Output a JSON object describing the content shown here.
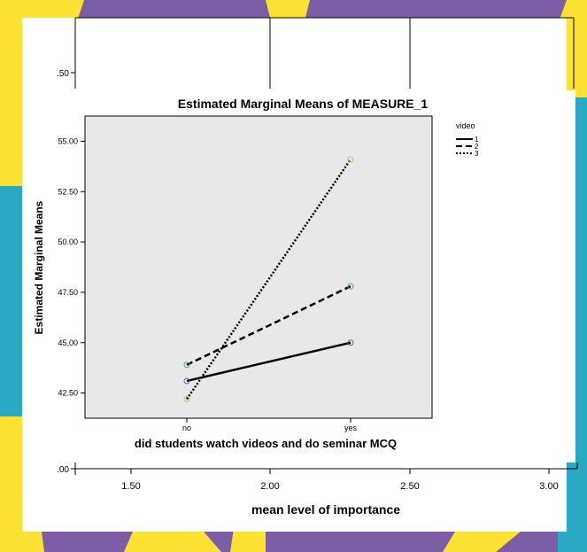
{
  "colors": {
    "purple": "#7b5ea6",
    "teal": "#2aa9c4",
    "yellow": "#fde233",
    "panel": "#e8e8e8"
  },
  "background_chart": {
    "y_tick_top": ".50",
    "y_tick_bottom": ".00",
    "x_ticks": [
      "1.50",
      "2.00",
      "2.50",
      "3.00"
    ],
    "xlabel": "mean level of importance"
  },
  "chart_data": {
    "type": "line",
    "title": "Estimated Marginal Means of MEASURE_1",
    "xlabel": "did students watch videos and do seminar MCQ",
    "ylabel": "Estimated Marginal Means",
    "categories": [
      "no",
      "yes"
    ],
    "yticks": [
      "42.50",
      "45.00",
      "47.50",
      "50.00",
      "52.50",
      "55.00"
    ],
    "ylim": [
      41.25,
      56.25
    ],
    "legend_title": "video",
    "legend_position": "right",
    "grid": false,
    "series": [
      {
        "name": "1",
        "values": [
          43.1,
          45.0
        ],
        "dash": "solid",
        "marker_color": "#5566aa"
      },
      {
        "name": "2",
        "values": [
          43.9,
          47.8
        ],
        "dash": "dashed",
        "marker_color": "#55aa66"
      },
      {
        "name": "3",
        "values": [
          42.2,
          54.1
        ],
        "dash": "dotted",
        "marker_color": "#bbbb66"
      }
    ]
  }
}
